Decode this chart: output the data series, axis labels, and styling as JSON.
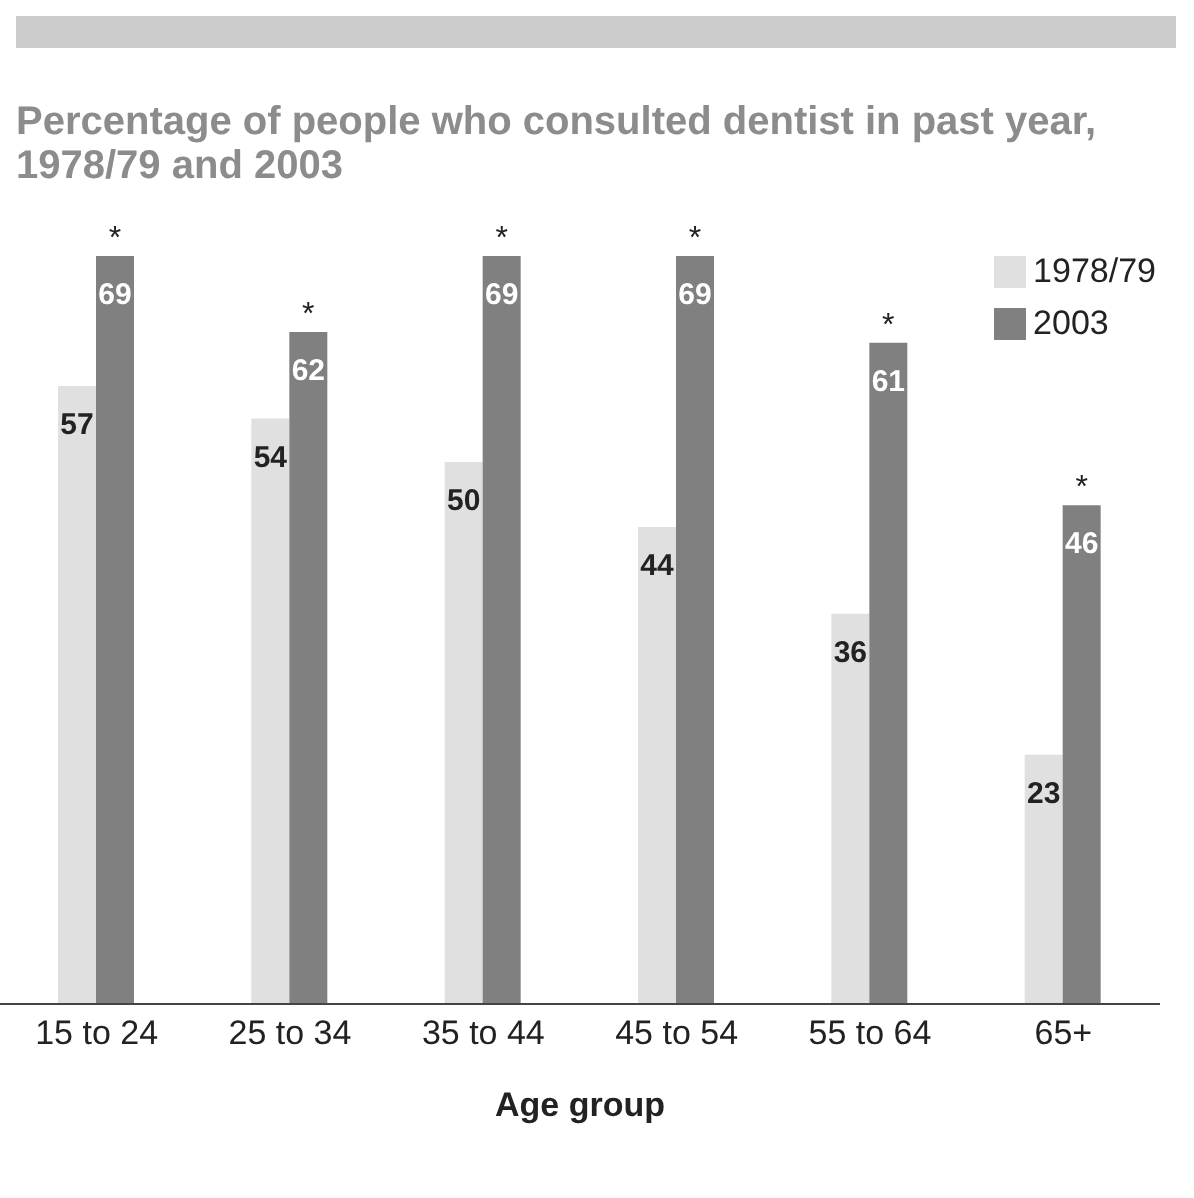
{
  "chart_data": {
    "type": "bar",
    "title": "Percentage of people who consulted dentist in past year, 1978/79 and 2003",
    "xlabel": "Age group",
    "categories": [
      "15 to 24",
      "25 to 34",
      "35 to 44",
      "45 to 54",
      "55 to 64",
      "65+"
    ],
    "series": [
      {
        "name": "1978/79",
        "color": "#e0e0e0",
        "values": [
          57,
          54,
          50,
          44,
          36,
          23
        ]
      },
      {
        "name": "2003",
        "color": "#808080",
        "values": [
          69,
          62,
          69,
          69,
          61,
          46
        ]
      }
    ],
    "data_labels": true,
    "legend": "top right",
    "grid": false,
    "annotations": [
      {
        "text": "*",
        "x": "15 to 24",
        "y": 69
      },
      {
        "text": "*",
        "x": "25 to 34",
        "y": 62
      },
      {
        "text": "*",
        "x": "35 to 44",
        "y": 69
      },
      {
        "text": "*",
        "x": "45 to 54",
        "y": 69
      },
      {
        "text": "*",
        "x": "55 to 64",
        "y": 61
      },
      {
        "text": "*",
        "x": "65+",
        "y": 46
      }
    ]
  }
}
